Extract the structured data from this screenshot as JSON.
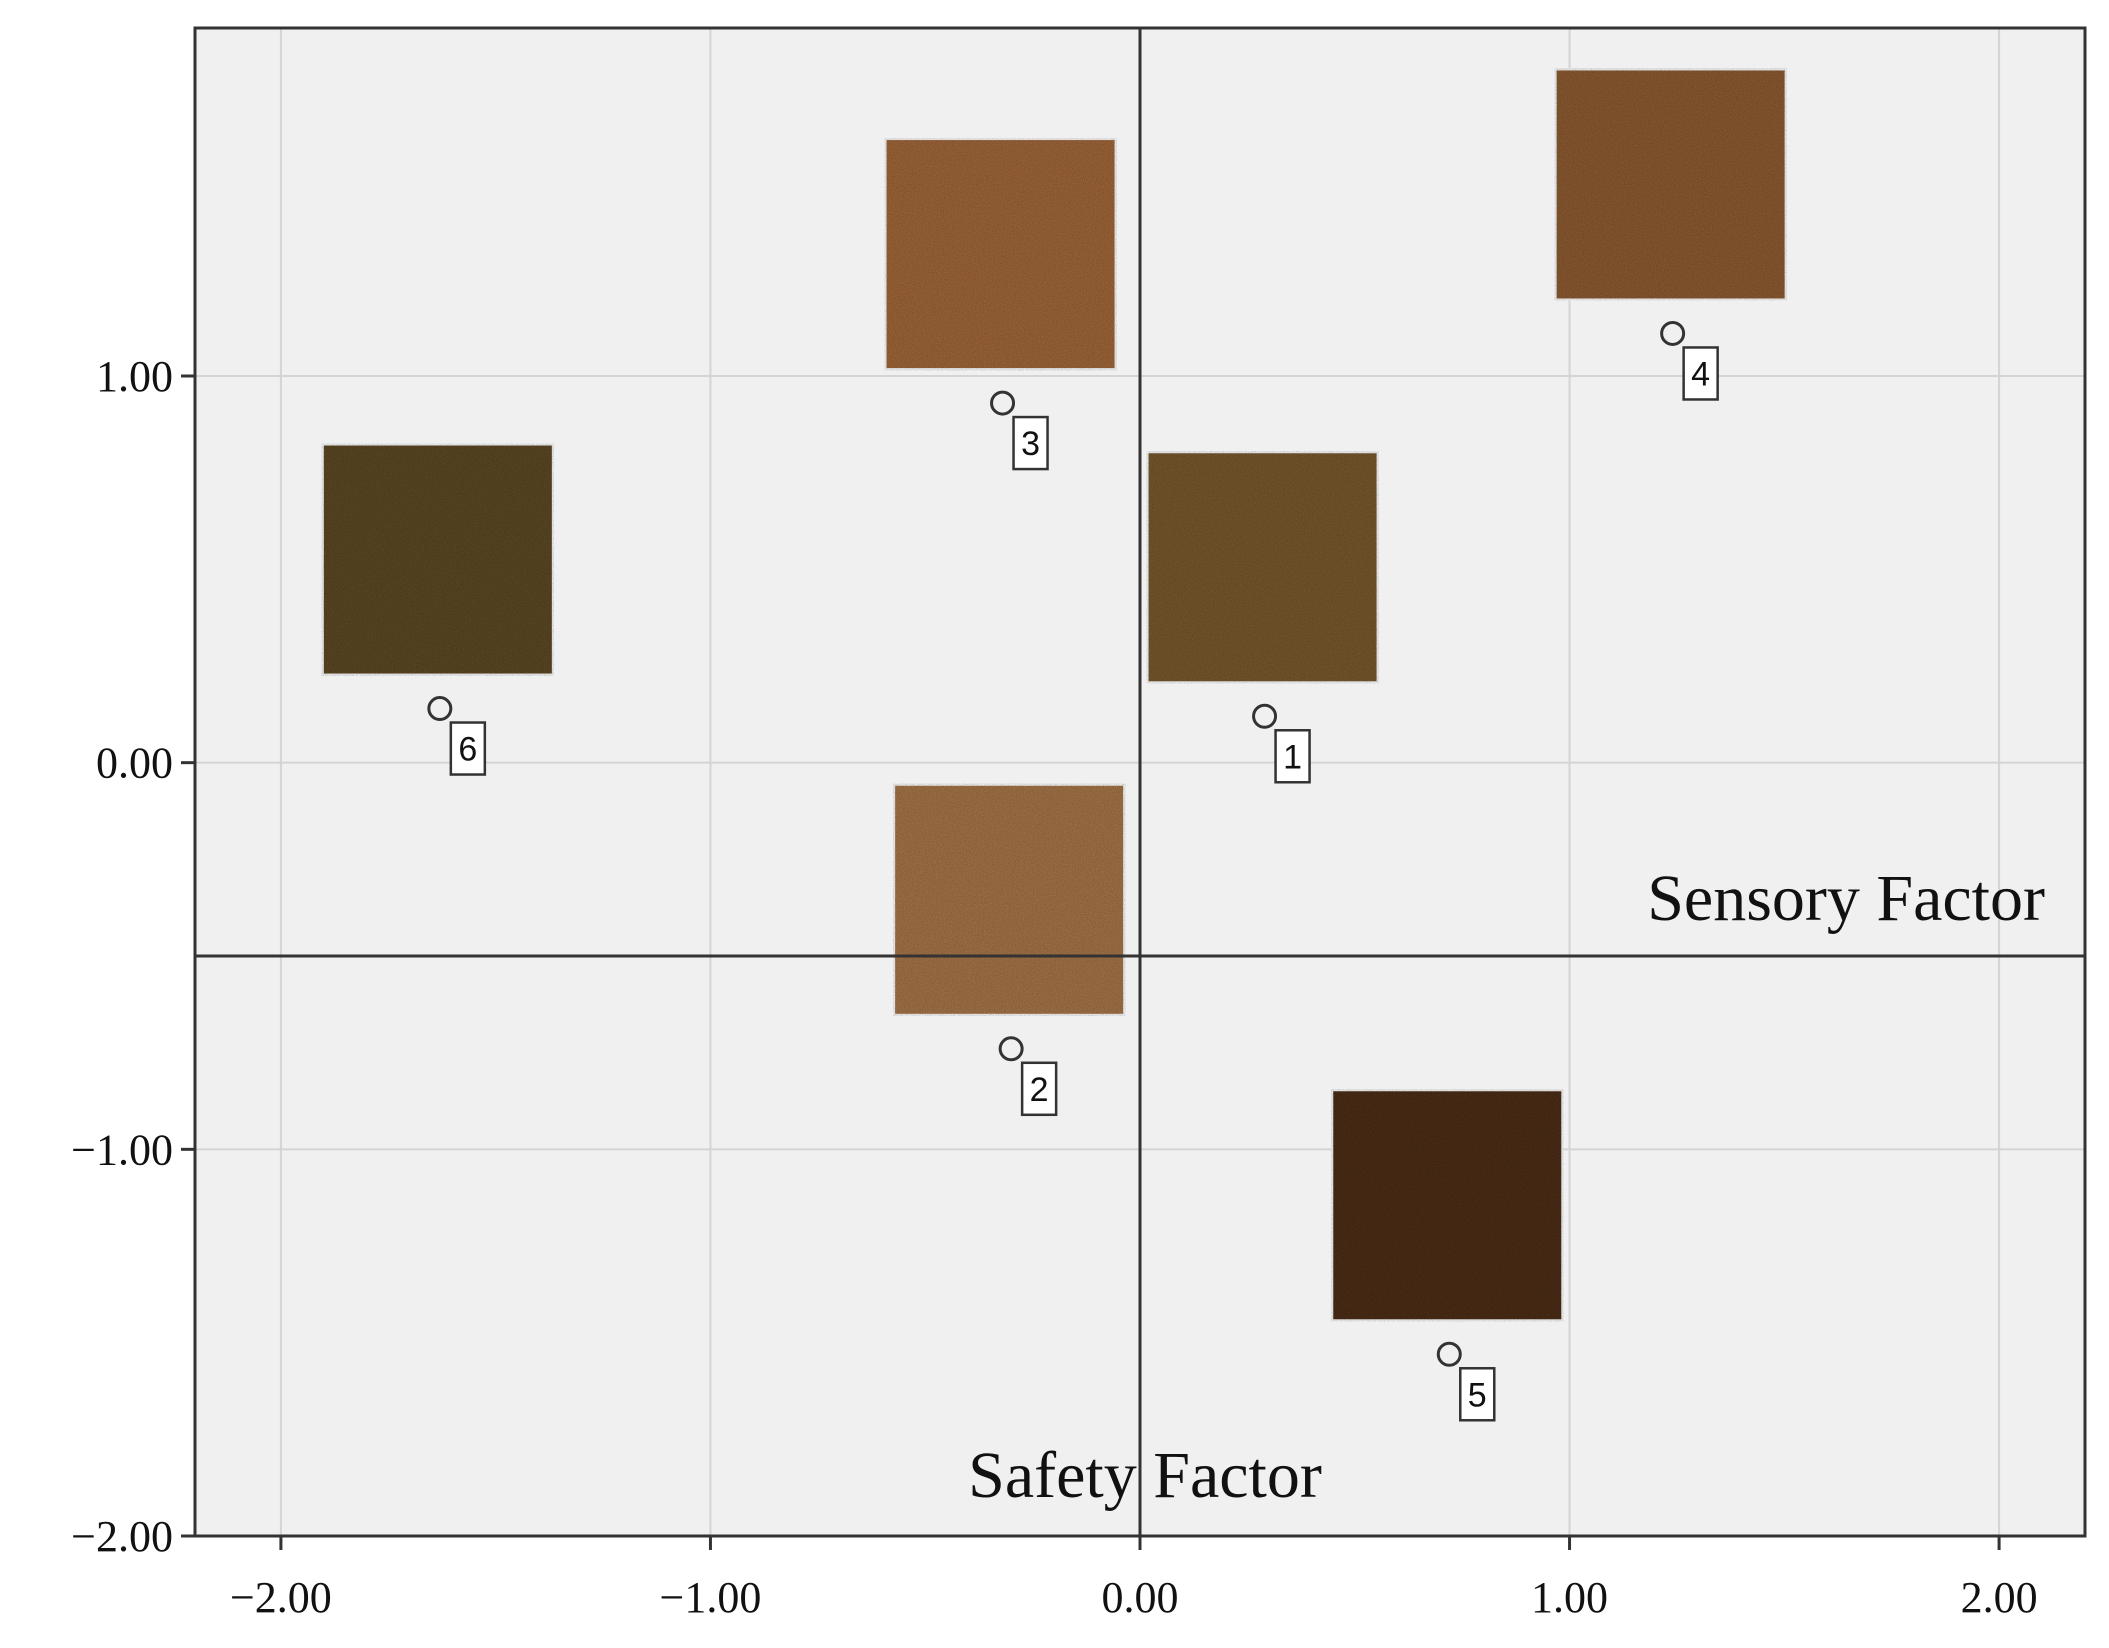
{
  "chart_data": {
    "type": "scatter",
    "title": "",
    "xlabel": "Sensory Factor",
    "ylabel": "Safety Factor",
    "xlim": [
      -2.2,
      2.2
    ],
    "ylim": [
      -2.0,
      1.9
    ],
    "xticks": [
      -2.0,
      -1.0,
      0.0,
      1.0,
      2.0
    ],
    "yticks": [
      -2.0,
      -1.0,
      0.0,
      1.0
    ],
    "xtick_labels": [
      "−2.00",
      "−1.00",
      "0.00",
      "1.00",
      "2.00"
    ],
    "ytick_labels": [
      "−2.00",
      "−1.00",
      "0.00",
      "1.00"
    ],
    "grid": true,
    "reference_lines": {
      "x": 0.0,
      "y": -0.5
    },
    "points": [
      {
        "label": "1",
        "x": 0.29,
        "y": 0.12,
        "swatch_color": "#7a5a30"
      },
      {
        "label": "2",
        "x": -0.3,
        "y": -0.74,
        "swatch_color": "#a8774a"
      },
      {
        "label": "3",
        "x": -0.32,
        "y": 0.93,
        "swatch_color": "#a2683a"
      },
      {
        "label": "4",
        "x": 1.24,
        "y": 1.11,
        "swatch_color": "#8e5d33"
      },
      {
        "label": "5",
        "x": 0.72,
        "y": -1.53,
        "swatch_color": "#4e2f17"
      },
      {
        "label": "6",
        "x": -1.63,
        "y": 0.14,
        "swatch_color": "#5e4a25"
      }
    ],
    "colors": {
      "plot_background": "#f0f0f0",
      "grid": "#d4d4d4",
      "axis": "#333333",
      "marker": "#333333"
    }
  }
}
